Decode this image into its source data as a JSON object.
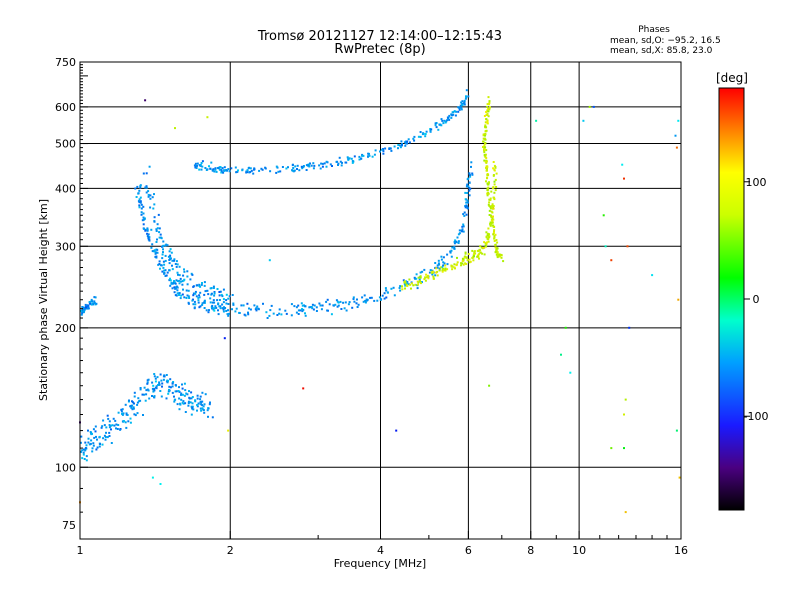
{
  "chart_data": {
    "type": "scatter",
    "title": "Tromsø 20121127 12:14:00–12:15:43",
    "subtitle": "RwPretec (8p)",
    "xlabel": "Frequency [MHz]",
    "ylabel": "Stationary phase Virtual Height [km]",
    "x_scale": "log",
    "y_scale": "log",
    "xlim": [
      1,
      16
    ],
    "ylim": [
      70,
      750
    ],
    "x_ticks": [
      1,
      2,
      4,
      6,
      8,
      10,
      16
    ],
    "x_tick_labels": [
      "1",
      "2",
      "4",
      "6",
      "8",
      "10",
      "16"
    ],
    "x_grid": [
      2,
      4,
      6,
      8,
      10
    ],
    "y_ticks": [
      75,
      100,
      200,
      300,
      400,
      500,
      600,
      750
    ],
    "y_tick_labels": [
      "75",
      "100",
      "200",
      "300",
      "400",
      "500",
      "600",
      "750"
    ],
    "y_grid": [
      100,
      200,
      300,
      400,
      500,
      600
    ],
    "grid": true,
    "stats": {
      "title": "Phases",
      "line_o": "mean, sd,O: −95.2, 16.5",
      "line_x": "mean, sd,X:  85.8, 23.0"
    },
    "colorbar": {
      "label": "[deg]",
      "range": [
        -180,
        180
      ],
      "ticks": [
        100,
        0,
        -100
      ],
      "tick_labels": [
        "100",
        "0",
        "-100"
      ],
      "colormap": "rainbow"
    },
    "series": [
      {
        "mode": "O",
        "color_value": -95,
        "traces": [
          {
            "points": [
              [
                1.0,
                107
              ],
              [
                1.03,
                111
              ],
              [
                1.06,
                114
              ],
              [
                1.1,
                117
              ],
              [
                1.15,
                121
              ],
              [
                1.2,
                126
              ],
              [
                1.25,
                131
              ],
              [
                1.3,
                137
              ],
              [
                1.35,
                143
              ],
              [
                1.4,
                149
              ],
              [
                1.45,
                152
              ],
              [
                1.5,
                150
              ],
              [
                1.55,
                147
              ],
              [
                1.6,
                143
              ],
              [
                1.65,
                140
              ],
              [
                1.7,
                137
              ],
              [
                1.75,
                135
              ],
              [
                1.8,
                134
              ]
            ],
            "spread": 0.1
          },
          {
            "points": [
              [
                1.3,
                410
              ],
              [
                1.32,
                370
              ],
              [
                1.35,
                330
              ],
              [
                1.4,
                300
              ],
              [
                1.45,
                275
              ],
              [
                1.5,
                258
              ],
              [
                1.55,
                245
              ],
              [
                1.6,
                236
              ],
              [
                1.7,
                228
              ],
              [
                1.8,
                224
              ],
              [
                1.9,
                221
              ],
              [
                2.0,
                219
              ],
              [
                2.2,
                217
              ],
              [
                2.5,
                217
              ],
              [
                2.8,
                219
              ],
              [
                3.0,
                221
              ],
              [
                3.3,
                224
              ],
              [
                3.6,
                229
              ],
              [
                4.0,
                236
              ],
              [
                4.4,
                245
              ],
              [
                4.8,
                255
              ],
              [
                5.2,
                270
              ],
              [
                5.5,
                290
              ],
              [
                5.8,
                320
              ],
              [
                5.95,
                360
              ],
              [
                6.0,
                400
              ],
              [
                6.1,
                450
              ]
            ],
            "spread": 0.05
          },
          {
            "points": [
              [
                1.35,
                440
              ],
              [
                1.4,
                360
              ],
              [
                1.45,
                310
              ],
              [
                1.5,
                285
              ],
              [
                1.55,
                268
              ],
              [
                1.6,
                255
              ],
              [
                1.7,
                245
              ],
              [
                1.8,
                238
              ],
              [
                1.9,
                234
              ],
              [
                2.0,
                231
              ]
            ],
            "spread": 0.09
          },
          {
            "points": [
              [
                1.7,
                450
              ],
              [
                1.8,
                445
              ],
              [
                1.9,
                440
              ],
              [
                2.0,
                437
              ],
              [
                2.2,
                437
              ],
              [
                2.5,
                440
              ],
              [
                2.8,
                444
              ],
              [
                3.0,
                448
              ],
              [
                3.3,
                455
              ],
              [
                3.6,
                465
              ],
              [
                4.0,
                480
              ],
              [
                4.4,
                498
              ],
              [
                4.8,
                520
              ],
              [
                5.2,
                545
              ],
              [
                5.5,
                570
              ],
              [
                5.8,
                600
              ],
              [
                6.0,
                640
              ]
            ],
            "spread": 0.03
          },
          {
            "points": [
              [
                1.0,
                215
              ],
              [
                1.02,
                220
              ],
              [
                1.05,
                225
              ],
              [
                1.08,
                230
              ]
            ],
            "spread": 0.03
          }
        ]
      },
      {
        "mode": "X",
        "color_value": 86,
        "traces": [
          {
            "points": [
              [
                4.4,
                245
              ],
              [
                4.7,
                250
              ],
              [
                5.0,
                258
              ],
              [
                5.3,
                265
              ],
              [
                5.6,
                272
              ],
              [
                5.9,
                280
              ],
              [
                6.1,
                285
              ],
              [
                6.3,
                290
              ],
              [
                6.5,
                300
              ],
              [
                6.6,
                320
              ],
              [
                6.7,
                350
              ],
              [
                6.75,
                400
              ],
              [
                6.8,
                450
              ]
            ],
            "spread": 0.04
          },
          {
            "points": [
              [
                6.6,
                620
              ],
              [
                6.55,
                580
              ],
              [
                6.5,
                540
              ],
              [
                6.45,
                500
              ],
              [
                6.5,
                460
              ],
              [
                6.55,
                420
              ],
              [
                6.6,
                380
              ],
              [
                6.7,
                340
              ],
              [
                6.8,
                310
              ],
              [
                6.85,
                290
              ],
              [
                7.0,
                280
              ]
            ],
            "spread": 0.03
          }
        ]
      },
      {
        "mode": "noise",
        "color_value": 0,
        "points": [
          [
            1.35,
            620
          ],
          [
            1.55,
            540
          ],
          [
            1.8,
            570
          ],
          [
            1.4,
            95
          ],
          [
            1.95,
            190
          ],
          [
            1.98,
            120
          ],
          [
            2.8,
            148
          ],
          [
            2.4,
            280
          ],
          [
            4.3,
            120
          ],
          [
            6.6,
            150
          ],
          [
            8.2,
            560
          ],
          [
            9.2,
            175
          ],
          [
            9.6,
            160
          ],
          [
            9.4,
            200
          ],
          [
            10.2,
            560
          ],
          [
            10.5,
            600
          ],
          [
            10.7,
            600
          ],
          [
            11.2,
            350
          ],
          [
            11.3,
            300
          ],
          [
            11.6,
            280
          ],
          [
            12.2,
            450
          ],
          [
            12.3,
            420
          ],
          [
            12.5,
            300
          ],
          [
            12.6,
            200
          ],
          [
            12.4,
            140
          ],
          [
            12.3,
            110
          ],
          [
            12.4,
            80
          ],
          [
            11.6,
            110
          ],
          [
            12.3,
            130
          ],
          [
            14.0,
            260
          ],
          [
            15.6,
            520
          ],
          [
            15.7,
            490
          ],
          [
            15.8,
            560
          ],
          [
            15.8,
            230
          ],
          [
            15.7,
            120
          ],
          [
            15.9,
            95
          ],
          [
            1.0,
            84
          ],
          [
            1.0,
            125
          ],
          [
            1.45,
            92
          ]
        ]
      }
    ]
  }
}
